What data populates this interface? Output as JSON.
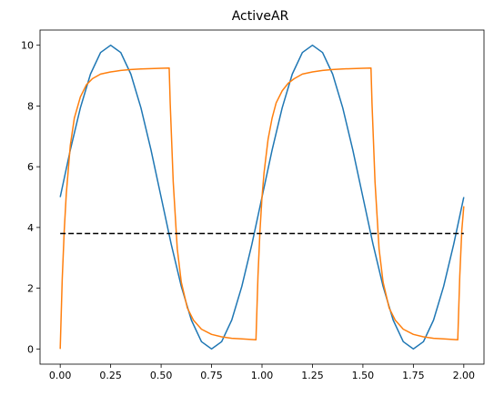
{
  "chart_data": {
    "type": "line",
    "title": "ActiveAR",
    "xlabel": "",
    "ylabel": "",
    "xlim": [
      -0.1,
      2.1
    ],
    "ylim": [
      -0.5,
      10.5
    ],
    "grid": false,
    "x_ticks": [
      0.0,
      0.25,
      0.5,
      0.75,
      1.0,
      1.25,
      1.5,
      1.75,
      2.0
    ],
    "x_tick_labels": [
      "0.00",
      "0.25",
      "0.50",
      "0.75",
      "1.00",
      "1.25",
      "1.50",
      "1.75",
      "2.00"
    ],
    "y_ticks": [
      0,
      2,
      4,
      6,
      8,
      10
    ],
    "y_tick_labels": [
      "0",
      "2",
      "4",
      "6",
      "8",
      "10"
    ],
    "series": [
      {
        "color": "#1f77b4",
        "style": "solid",
        "x": [
          0.0,
          0.05,
          0.1,
          0.15,
          0.2,
          0.25,
          0.3,
          0.35,
          0.4,
          0.45,
          0.5,
          0.55,
          0.6,
          0.65,
          0.7,
          0.75,
          0.8,
          0.85,
          0.9,
          0.95,
          1.0,
          1.05,
          1.1,
          1.15,
          1.2,
          1.25,
          1.3,
          1.35,
          1.4,
          1.45,
          1.5,
          1.55,
          1.6,
          1.65,
          1.7,
          1.75,
          1.8,
          1.85,
          1.9,
          1.95,
          2.0
        ],
        "y": [
          5.0,
          6.55,
          7.94,
          9.05,
          9.76,
          10.0,
          9.76,
          9.05,
          7.94,
          6.55,
          5.0,
          3.45,
          2.06,
          0.95,
          0.24,
          0.0,
          0.24,
          0.95,
          2.06,
          3.45,
          5.0,
          6.55,
          7.94,
          9.05,
          9.76,
          10.0,
          9.76,
          9.05,
          7.94,
          6.55,
          5.0,
          3.45,
          2.06,
          0.95,
          0.24,
          0.0,
          0.24,
          0.95,
          2.06,
          3.45,
          5.0
        ]
      },
      {
        "color": "#ff7f0e",
        "style": "solid",
        "x": [
          0.0,
          0.01,
          0.02,
          0.03,
          0.05,
          0.07,
          0.1,
          0.13,
          0.16,
          0.2,
          0.25,
          0.3,
          0.35,
          0.4,
          0.45,
          0.5,
          0.54,
          0.545,
          0.56,
          0.58,
          0.6,
          0.63,
          0.66,
          0.7,
          0.75,
          0.8,
          0.85,
          0.9,
          0.97,
          0.98,
          0.99,
          1.0,
          1.01,
          1.03,
          1.05,
          1.07,
          1.1,
          1.13,
          1.16,
          1.2,
          1.25,
          1.3,
          1.35,
          1.4,
          1.45,
          1.5,
          1.54,
          1.545,
          1.56,
          1.58,
          1.6,
          1.63,
          1.66,
          1.7,
          1.75,
          1.8,
          1.85,
          1.9,
          1.97,
          1.98,
          1.99,
          2.0
        ],
        "y": [
          0.0,
          2.3,
          3.9,
          5.1,
          6.7,
          7.6,
          8.3,
          8.7,
          8.9,
          9.05,
          9.12,
          9.17,
          9.2,
          9.22,
          9.23,
          9.24,
          9.25,
          8.1,
          5.5,
          3.3,
          2.2,
          1.35,
          0.95,
          0.65,
          0.48,
          0.4,
          0.35,
          0.33,
          0.3,
          2.4,
          3.9,
          5.0,
          5.8,
          6.9,
          7.6,
          8.1,
          8.5,
          8.75,
          8.9,
          9.05,
          9.12,
          9.17,
          9.2,
          9.22,
          9.23,
          9.24,
          9.25,
          8.1,
          5.5,
          3.3,
          2.2,
          1.35,
          0.95,
          0.65,
          0.48,
          0.4,
          0.35,
          0.33,
          0.3,
          2.4,
          3.9,
          4.7
        ]
      },
      {
        "color": "#000000",
        "style": "dashed",
        "x": [
          0.0,
          2.0
        ],
        "y": [
          3.8,
          3.8
        ]
      }
    ]
  }
}
